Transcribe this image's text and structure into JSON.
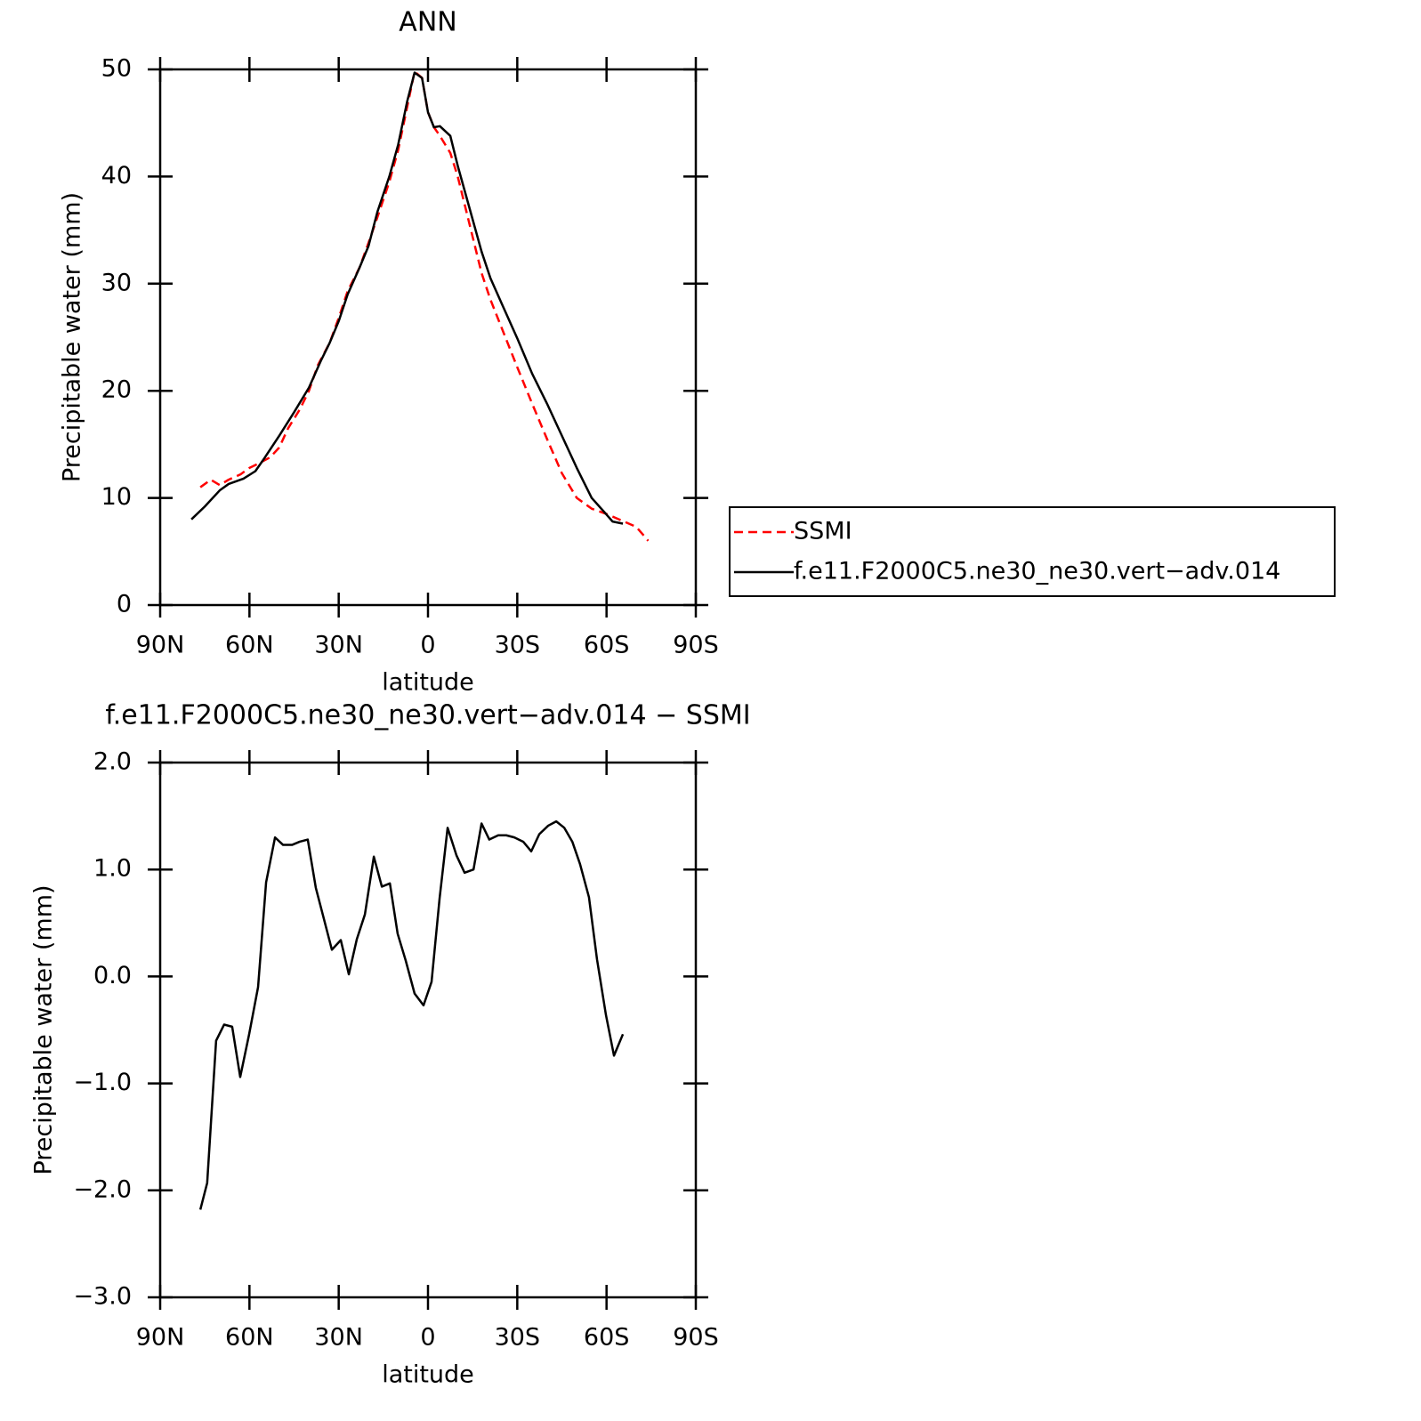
{
  "chart_data": [
    {
      "type": "line",
      "title": "ANN",
      "xlabel": "latitude",
      "ylabel": "Precipitable water (mm)",
      "xlim": [
        90,
        -90
      ],
      "xticks": [
        {
          "value": 90,
          "label": "90N"
        },
        {
          "value": 60,
          "label": "60N"
        },
        {
          "value": 30,
          "label": "30N"
        },
        0,
        {
          "value": -30,
          "label": "30S"
        },
        {
          "value": -60,
          "label": "60S"
        },
        {
          "value": -90,
          "label": "90S"
        }
      ],
      "ylim": [
        0,
        50
      ],
      "yticks": [
        0,
        10,
        20,
        30,
        40,
        50
      ],
      "grid": false,
      "legend": "outside-right",
      "series": [
        {
          "name": "SSMI",
          "color": "#ff0000",
          "line_style": "dashed",
          "x": [
            76.5,
            73,
            70,
            67,
            63,
            60,
            57,
            53,
            50,
            47,
            43,
            40,
            37,
            33,
            30,
            27,
            23,
            20,
            17,
            13,
            10,
            7,
            4.5,
            2,
            0,
            -2,
            -4,
            -7.5,
            -10,
            -14,
            -18,
            -21,
            -25,
            -30,
            -35,
            -40,
            -45,
            -50,
            -55,
            -60,
            -65,
            -70,
            -74
          ],
          "values": [
            11.0,
            11.7,
            11.2,
            11.7,
            12.2,
            12.8,
            13.2,
            13.8,
            14.7,
            16.5,
            18.3,
            20.0,
            22.4,
            24.5,
            26.8,
            29.3,
            31.5,
            33.8,
            36.2,
            39.5,
            42.5,
            46.5,
            49.8,
            49.2,
            46.0,
            44.6,
            43.8,
            42.2,
            40.0,
            35.5,
            31.0,
            28.5,
            25.7,
            22.2,
            18.8,
            15.5,
            12.3,
            10.0,
            9.0,
            8.5,
            7.9,
            7.3,
            6.0
          ]
        },
        {
          "name": "f.e11.F2000C5.ne30_ne30.vert−adv.014",
          "color": "#000000",
          "line_style": "solid",
          "x": [
            79.5,
            75,
            70,
            67,
            62,
            58,
            55,
            50,
            45,
            40,
            36,
            33,
            30,
            27,
            23,
            20,
            17,
            13,
            10,
            7,
            4.5,
            2,
            0,
            -2,
            -4,
            -7.5,
            -10,
            -14,
            -18,
            -21,
            -25,
            -30,
            -35,
            -40,
            -45,
            -50,
            -55,
            -59.5,
            -62,
            -65.5
          ],
          "values": [
            8.0,
            9.2,
            10.7,
            11.3,
            11.8,
            12.5,
            13.7,
            15.8,
            18.0,
            20.3,
            22.8,
            24.5,
            26.5,
            29.0,
            31.5,
            33.5,
            36.7,
            40.0,
            43.0,
            47.0,
            49.7,
            49.2,
            46.0,
            44.6,
            44.7,
            43.8,
            41.0,
            37.0,
            33.0,
            30.5,
            28.0,
            24.9,
            21.6,
            18.8,
            15.8,
            12.8,
            10.0,
            8.6,
            7.8,
            7.6
          ]
        }
      ]
    },
    {
      "type": "line",
      "title": "f.e11.F2000C5.ne30_ne30.vert−adv.014 − SSMI",
      "xlabel": "latitude",
      "ylabel": "Precipitable water (mm)",
      "xlim": [
        90,
        -90
      ],
      "xticks": [
        {
          "value": 90,
          "label": "90N"
        },
        {
          "value": 60,
          "label": "60N"
        },
        {
          "value": 30,
          "label": "30N"
        },
        0,
        {
          "value": -30,
          "label": "30S"
        },
        {
          "value": -60,
          "label": "60S"
        },
        {
          "value": -90,
          "label": "90S"
        }
      ],
      "ylim": [
        -3,
        2
      ],
      "yticks": [
        {
          "value": -3,
          "label": "−3.0"
        },
        {
          "value": -2,
          "label": "−2.0"
        },
        {
          "value": -1,
          "label": "−1.0"
        },
        {
          "value": 0,
          "label": "0.0"
        },
        {
          "value": 1,
          "label": "1.0"
        },
        {
          "value": 2,
          "label": "2.0"
        }
      ],
      "grid": false,
      "series": [
        {
          "color": "#000000",
          "line_style": "solid",
          "x": [
            76.5,
            74.2,
            71.2,
            68.5,
            65.8,
            63.1,
            60.1,
            57.1,
            54.4,
            51.4,
            48.7,
            45.7,
            43.1,
            40.4,
            37.7,
            35.0,
            32.3,
            29.3,
            26.6,
            23.9,
            21.2,
            18.2,
            15.5,
            12.8,
            10.2,
            7.5,
            4.5,
            1.5,
            -1.2,
            -3.9,
            -6.6,
            -9.6,
            -12.3,
            -15.3,
            -18.0,
            -20.6,
            -23.6,
            -26.3,
            -29.0,
            -32.0,
            -34.7,
            -37.4,
            -40.4,
            -43.1,
            -45.8,
            -48.5,
            -51.1,
            -54.1,
            -56.8,
            -59.8,
            -62.5,
            -65.5
          ],
          "values": [
            -2.18,
            -1.93,
            -0.6,
            -0.45,
            -0.47,
            -0.94,
            -0.54,
            -0.1,
            0.88,
            1.3,
            1.23,
            1.23,
            1.26,
            1.28,
            0.83,
            0.54,
            0.25,
            0.34,
            0.02,
            0.35,
            0.58,
            1.12,
            0.84,
            0.87,
            0.4,
            0.15,
            -0.16,
            -0.27,
            -0.05,
            0.73,
            1.39,
            1.13,
            0.97,
            1.0,
            1.43,
            1.28,
            1.32,
            1.32,
            1.3,
            1.26,
            1.17,
            1.33,
            1.41,
            1.45,
            1.39,
            1.26,
            1.05,
            0.74,
            0.16,
            -0.36,
            -0.74,
            -0.54
          ]
        }
      ]
    }
  ]
}
